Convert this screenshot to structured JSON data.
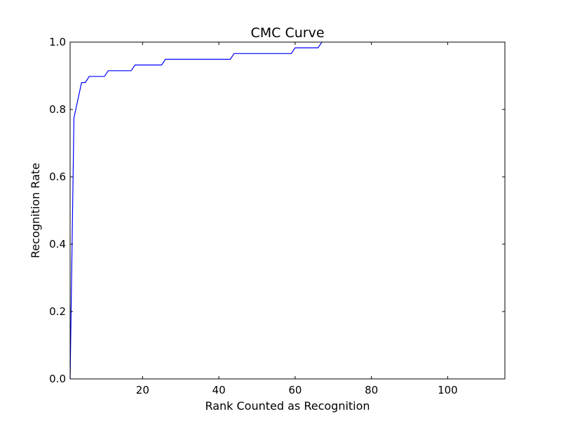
{
  "chart_data": {
    "type": "line",
    "title": "CMC Curve",
    "xlabel": "Rank Counted as Recognition",
    "ylabel": "Recognition Rate",
    "xlim": [
      1,
      115
    ],
    "ylim": [
      0.0,
      1.0
    ],
    "xticks": [
      20,
      40,
      60,
      80,
      100
    ],
    "yticks": [
      0.0,
      0.2,
      0.4,
      0.6,
      0.8,
      1.0
    ],
    "xtick_labels": [
      "20",
      "40",
      "60",
      "80",
      "100"
    ],
    "ytick_labels": [
      "0.0",
      "0.2",
      "0.4",
      "0.6",
      "0.8",
      "1.0"
    ],
    "grid": false,
    "legend": "none",
    "series": [
      {
        "color": "#0000ff",
        "x": [
          1,
          2,
          4,
          5,
          6,
          10,
          11,
          17,
          18,
          25,
          26,
          43,
          44,
          59,
          60,
          66,
          67
        ],
        "y": [
          0.0,
          0.775,
          0.88,
          0.88,
          0.898,
          0.898,
          0.915,
          0.915,
          0.932,
          0.932,
          0.949,
          0.949,
          0.966,
          0.966,
          0.983,
          0.983,
          1.0
        ]
      }
    ]
  }
}
